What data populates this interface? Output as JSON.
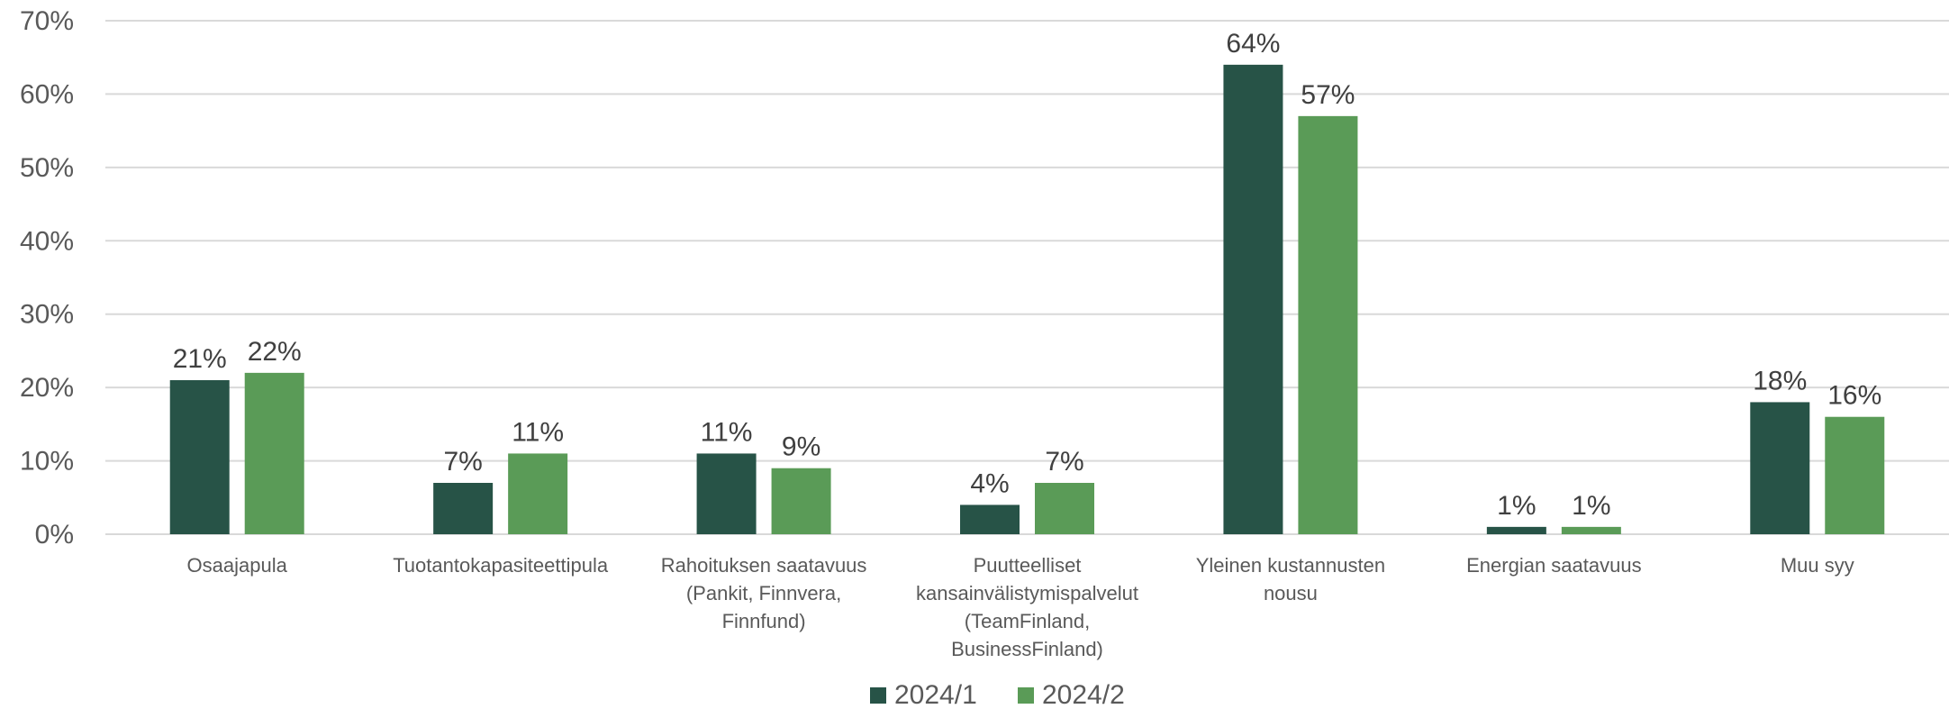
{
  "chart_data": {
    "type": "bar",
    "title": "",
    "xlabel": "",
    "ylabel": "",
    "ylim": [
      0,
      70
    ],
    "yticks": [
      "0%",
      "10%",
      "20%",
      "30%",
      "40%",
      "50%",
      "60%",
      "70%"
    ],
    "grid": true,
    "legend_position": "bottom",
    "categories": [
      [
        "Osaajapula"
      ],
      [
        "Tuotantokapasiteettipula"
      ],
      [
        "Rahoituksen saatavuus",
        "(Pankit, Finnvera,",
        "Finnfund)"
      ],
      [
        "Puutteelliset",
        "kansainvälistymispalvelut",
        "(TeamFinland,",
        "BusinessFinland)"
      ],
      [
        "Yleinen kustannusten",
        "nousu"
      ],
      [
        "Energian saatavuus"
      ],
      [
        "Muu syy"
      ]
    ],
    "series": [
      {
        "name": "2024/1",
        "color": "#275347",
        "values": [
          21,
          7,
          11,
          4,
          64,
          1,
          18
        ],
        "labels": [
          "21%",
          "7%",
          "11%",
          "4%",
          "64%",
          "1%",
          "18%"
        ]
      },
      {
        "name": "2024/2",
        "color": "#5a9b57",
        "values": [
          22,
          11,
          9,
          7,
          57,
          1,
          16
        ],
        "labels": [
          "22%",
          "11%",
          "9%",
          "7%",
          "57%",
          "1%",
          "16%"
        ]
      }
    ]
  }
}
